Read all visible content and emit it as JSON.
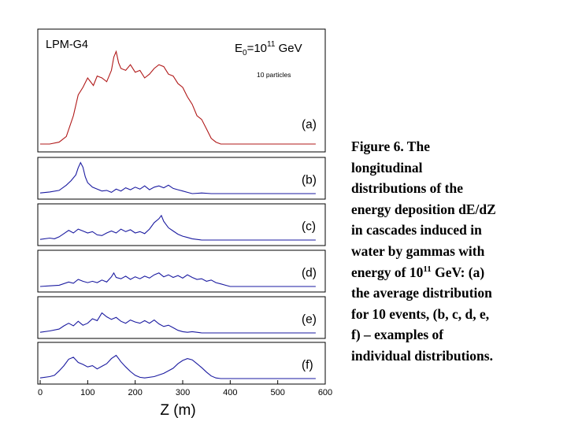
{
  "chart_data": {
    "type": "line",
    "title": "LPM-G4",
    "energy_label": {
      "prefix": "E",
      "sub": "0",
      "mid": "=10",
      "sup": "11",
      "unit": " GeV"
    },
    "note": "10 particles",
    "xlabel": "Z (m)",
    "xlim": [
      -5,
      600
    ],
    "xticks": [
      0,
      100,
      200,
      300,
      400,
      500,
      600
    ],
    "grid": false,
    "colors": {
      "average": "#b01818",
      "individual": "#1a1aa0",
      "frame": "#000000"
    },
    "panels": [
      {
        "label": "(a)",
        "ylim": [
          0,
          1
        ],
        "points": [
          [
            0,
            0.0
          ],
          [
            20,
            0.0
          ],
          [
            40,
            0.02
          ],
          [
            55,
            0.08
          ],
          [
            70,
            0.3
          ],
          [
            80,
            0.52
          ],
          [
            90,
            0.6
          ],
          [
            100,
            0.7
          ],
          [
            112,
            0.62
          ],
          [
            120,
            0.72
          ],
          [
            130,
            0.7
          ],
          [
            140,
            0.66
          ],
          [
            150,
            0.78
          ],
          [
            155,
            0.92
          ],
          [
            160,
            0.98
          ],
          [
            165,
            0.86
          ],
          [
            170,
            0.8
          ],
          [
            180,
            0.78
          ],
          [
            190,
            0.84
          ],
          [
            200,
            0.76
          ],
          [
            210,
            0.78
          ],
          [
            220,
            0.7
          ],
          [
            230,
            0.74
          ],
          [
            240,
            0.8
          ],
          [
            250,
            0.84
          ],
          [
            260,
            0.82
          ],
          [
            270,
            0.74
          ],
          [
            280,
            0.72
          ],
          [
            290,
            0.64
          ],
          [
            300,
            0.6
          ],
          [
            310,
            0.5
          ],
          [
            320,
            0.42
          ],
          [
            330,
            0.3
          ],
          [
            340,
            0.26
          ],
          [
            350,
            0.16
          ],
          [
            360,
            0.06
          ],
          [
            370,
            0.02
          ],
          [
            380,
            0.0
          ],
          [
            400,
            0.0
          ],
          [
            420,
            0.0
          ],
          [
            440,
            0.0
          ],
          [
            460,
            0.0
          ],
          [
            480,
            0.0
          ],
          [
            500,
            0.0
          ],
          [
            520,
            0.0
          ],
          [
            540,
            0.0
          ],
          [
            560,
            0.0
          ],
          [
            580,
            0.0
          ]
        ]
      },
      {
        "label": "(b)",
        "ylim": [
          0,
          1
        ],
        "points": [
          [
            0,
            0.02
          ],
          [
            20,
            0.05
          ],
          [
            40,
            0.1
          ],
          [
            55,
            0.26
          ],
          [
            65,
            0.4
          ],
          [
            75,
            0.58
          ],
          [
            80,
            0.8
          ],
          [
            85,
            0.96
          ],
          [
            90,
            0.82
          ],
          [
            95,
            0.52
          ],
          [
            100,
            0.34
          ],
          [
            110,
            0.2
          ],
          [
            120,
            0.14
          ],
          [
            130,
            0.08
          ],
          [
            140,
            0.1
          ],
          [
            150,
            0.04
          ],
          [
            160,
            0.14
          ],
          [
            170,
            0.08
          ],
          [
            180,
            0.18
          ],
          [
            190,
            0.12
          ],
          [
            200,
            0.2
          ],
          [
            210,
            0.14
          ],
          [
            220,
            0.24
          ],
          [
            230,
            0.12
          ],
          [
            240,
            0.2
          ],
          [
            250,
            0.24
          ],
          [
            260,
            0.18
          ],
          [
            270,
            0.26
          ],
          [
            280,
            0.16
          ],
          [
            290,
            0.12
          ],
          [
            300,
            0.08
          ],
          [
            310,
            0.04
          ],
          [
            320,
            0.0
          ],
          [
            340,
            0.02
          ],
          [
            360,
            0.0
          ],
          [
            380,
            0.0
          ],
          [
            400,
            0.0
          ],
          [
            420,
            0.0
          ],
          [
            440,
            0.0
          ],
          [
            460,
            0.0
          ],
          [
            480,
            0.0
          ],
          [
            500,
            0.0
          ],
          [
            520,
            0.0
          ],
          [
            540,
            0.0
          ],
          [
            560,
            0.0
          ],
          [
            580,
            0.0
          ]
        ]
      },
      {
        "label": "(c)",
        "ylim": [
          0,
          1
        ],
        "points": [
          [
            0,
            0.02
          ],
          [
            20,
            0.06
          ],
          [
            30,
            0.04
          ],
          [
            40,
            0.1
          ],
          [
            50,
            0.2
          ],
          [
            60,
            0.3
          ],
          [
            70,
            0.22
          ],
          [
            80,
            0.34
          ],
          [
            90,
            0.28
          ],
          [
            100,
            0.22
          ],
          [
            110,
            0.26
          ],
          [
            120,
            0.16
          ],
          [
            130,
            0.14
          ],
          [
            140,
            0.22
          ],
          [
            150,
            0.28
          ],
          [
            160,
            0.22
          ],
          [
            170,
            0.34
          ],
          [
            180,
            0.26
          ],
          [
            190,
            0.32
          ],
          [
            200,
            0.22
          ],
          [
            210,
            0.26
          ],
          [
            220,
            0.2
          ],
          [
            230,
            0.34
          ],
          [
            240,
            0.54
          ],
          [
            250,
            0.66
          ],
          [
            255,
            0.76
          ],
          [
            260,
            0.58
          ],
          [
            270,
            0.38
          ],
          [
            280,
            0.28
          ],
          [
            290,
            0.18
          ],
          [
            300,
            0.12
          ],
          [
            310,
            0.08
          ],
          [
            320,
            0.04
          ],
          [
            340,
            0.0
          ],
          [
            360,
            0.0
          ],
          [
            380,
            0.0
          ],
          [
            400,
            0.0
          ],
          [
            420,
            0.0
          ],
          [
            440,
            0.0
          ],
          [
            460,
            0.0
          ],
          [
            480,
            0.0
          ],
          [
            500,
            0.0
          ],
          [
            520,
            0.0
          ],
          [
            540,
            0.0
          ],
          [
            560,
            0.0
          ],
          [
            580,
            0.0
          ]
        ]
      },
      {
        "label": "(d)",
        "ylim": [
          0,
          1
        ],
        "points": [
          [
            0,
            0.0
          ],
          [
            20,
            0.02
          ],
          [
            40,
            0.04
          ],
          [
            60,
            0.14
          ],
          [
            70,
            0.1
          ],
          [
            80,
            0.22
          ],
          [
            90,
            0.16
          ],
          [
            100,
            0.12
          ],
          [
            110,
            0.16
          ],
          [
            120,
            0.12
          ],
          [
            130,
            0.2
          ],
          [
            140,
            0.14
          ],
          [
            150,
            0.3
          ],
          [
            155,
            0.42
          ],
          [
            160,
            0.28
          ],
          [
            170,
            0.24
          ],
          [
            180,
            0.32
          ],
          [
            190,
            0.22
          ],
          [
            200,
            0.3
          ],
          [
            210,
            0.24
          ],
          [
            220,
            0.32
          ],
          [
            230,
            0.26
          ],
          [
            240,
            0.36
          ],
          [
            250,
            0.42
          ],
          [
            260,
            0.3
          ],
          [
            270,
            0.36
          ],
          [
            280,
            0.28
          ],
          [
            290,
            0.34
          ],
          [
            300,
            0.26
          ],
          [
            310,
            0.36
          ],
          [
            320,
            0.28
          ],
          [
            330,
            0.22
          ],
          [
            340,
            0.24
          ],
          [
            350,
            0.16
          ],
          [
            360,
            0.2
          ],
          [
            370,
            0.12
          ],
          [
            380,
            0.08
          ],
          [
            390,
            0.04
          ],
          [
            400,
            0.0
          ],
          [
            420,
            0.0
          ],
          [
            440,
            0.0
          ],
          [
            460,
            0.0
          ],
          [
            480,
            0.0
          ],
          [
            500,
            0.0
          ],
          [
            520,
            0.0
          ],
          [
            540,
            0.0
          ],
          [
            560,
            0.0
          ],
          [
            580,
            0.0
          ]
        ]
      },
      {
        "label": "(e)",
        "ylim": [
          0,
          1
        ],
        "points": [
          [
            0,
            0.02
          ],
          [
            20,
            0.06
          ],
          [
            40,
            0.12
          ],
          [
            50,
            0.22
          ],
          [
            60,
            0.3
          ],
          [
            70,
            0.22
          ],
          [
            80,
            0.36
          ],
          [
            90,
            0.24
          ],
          [
            100,
            0.3
          ],
          [
            110,
            0.44
          ],
          [
            120,
            0.38
          ],
          [
            130,
            0.62
          ],
          [
            140,
            0.5
          ],
          [
            150,
            0.42
          ],
          [
            160,
            0.48
          ],
          [
            170,
            0.36
          ],
          [
            180,
            0.3
          ],
          [
            190,
            0.4
          ],
          [
            200,
            0.34
          ],
          [
            210,
            0.3
          ],
          [
            220,
            0.38
          ],
          [
            230,
            0.3
          ],
          [
            240,
            0.4
          ],
          [
            250,
            0.28
          ],
          [
            260,
            0.2
          ],
          [
            270,
            0.24
          ],
          [
            280,
            0.16
          ],
          [
            290,
            0.08
          ],
          [
            300,
            0.04
          ],
          [
            310,
            0.02
          ],
          [
            320,
            0.04
          ],
          [
            340,
            0.0
          ],
          [
            360,
            0.0
          ],
          [
            380,
            0.0
          ],
          [
            400,
            0.0
          ],
          [
            420,
            0.0
          ],
          [
            440,
            0.0
          ],
          [
            460,
            0.0
          ],
          [
            480,
            0.0
          ],
          [
            500,
            0.0
          ],
          [
            520,
            0.0
          ],
          [
            540,
            0.0
          ],
          [
            560,
            0.0
          ],
          [
            580,
            0.0
          ]
        ]
      },
      {
        "label": "(f)",
        "ylim": [
          0,
          1
        ],
        "points": [
          [
            0,
            0.02
          ],
          [
            20,
            0.06
          ],
          [
            30,
            0.1
          ],
          [
            40,
            0.24
          ],
          [
            50,
            0.4
          ],
          [
            60,
            0.6
          ],
          [
            70,
            0.66
          ],
          [
            80,
            0.5
          ],
          [
            90,
            0.44
          ],
          [
            100,
            0.36
          ],
          [
            110,
            0.4
          ],
          [
            120,
            0.3
          ],
          [
            130,
            0.38
          ],
          [
            140,
            0.46
          ],
          [
            150,
            0.62
          ],
          [
            160,
            0.72
          ],
          [
            165,
            0.62
          ],
          [
            170,
            0.52
          ],
          [
            180,
            0.36
          ],
          [
            190,
            0.22
          ],
          [
            200,
            0.1
          ],
          [
            210,
            0.04
          ],
          [
            220,
            0.02
          ],
          [
            240,
            0.06
          ],
          [
            260,
            0.16
          ],
          [
            280,
            0.32
          ],
          [
            290,
            0.46
          ],
          [
            300,
            0.56
          ],
          [
            310,
            0.62
          ],
          [
            320,
            0.58
          ],
          [
            330,
            0.46
          ],
          [
            340,
            0.34
          ],
          [
            350,
            0.2
          ],
          [
            360,
            0.08
          ],
          [
            370,
            0.02
          ],
          [
            380,
            0.0
          ],
          [
            400,
            0.0
          ],
          [
            420,
            0.0
          ],
          [
            440,
            0.0
          ],
          [
            460,
            0.0
          ],
          [
            480,
            0.0
          ],
          [
            500,
            0.0
          ],
          [
            520,
            0.0
          ],
          [
            540,
            0.0
          ],
          [
            560,
            0.0
          ],
          [
            580,
            0.0
          ]
        ]
      }
    ]
  },
  "caption": {
    "lines": [
      "Figure 6.  The",
      "longitudinal",
      "distributions of the",
      "energy deposition dE/dZ",
      "in cascades induced in",
      "water by gammas with"
    ],
    "line7_pre": "energy of 10",
    "line7_sup": "11",
    "line7_post": " GeV: (a)",
    "lines_end": [
      "the average distribution",
      "for 10 events, (b, c, d, e,",
      "f) – examples of",
      "individual distributions."
    ]
  }
}
